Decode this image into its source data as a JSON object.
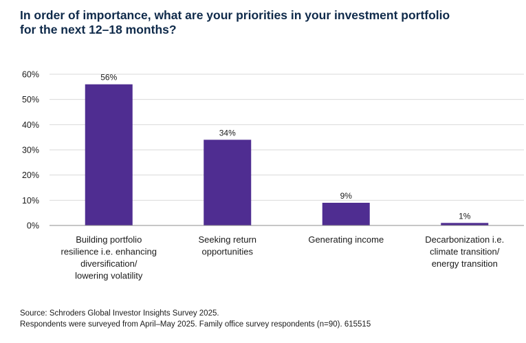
{
  "chart_data": {
    "type": "bar",
    "title_lines": [
      "In order of importance, what are your priorities in your investment portfolio",
      "for the next 12–18 months?"
    ],
    "categories": [
      [
        "Building portfolio",
        "resilience i.e. enhancing",
        "diversification/",
        "lowering volatility"
      ],
      [
        "Seeking return",
        "opportunities"
      ],
      [
        "Generating income"
      ],
      [
        "Decarbonization i.e.",
        "climate transition/",
        "energy transition"
      ]
    ],
    "values": [
      56,
      34,
      9,
      1
    ],
    "value_labels": [
      "56%",
      "34%",
      "9%",
      "1%"
    ],
    "ylim": [
      0,
      60
    ],
    "yticks": [
      0,
      10,
      20,
      30,
      40,
      50,
      60
    ],
    "ytick_labels": [
      "0%",
      "10%",
      "20%",
      "30%",
      "40%",
      "50%",
      "60%"
    ],
    "xlabel": "",
    "ylabel": "",
    "grid": true,
    "bar_color": "#4f2d91",
    "grid_color": "#d9d9d9",
    "axis_color": "#8c8c8c"
  },
  "footer": {
    "source": "Source: Schroders Global Investor Insights Survey 2025.",
    "note": "Respondents were surveyed from April–May 2025. Family office survey respondents (n=90). 615515"
  }
}
